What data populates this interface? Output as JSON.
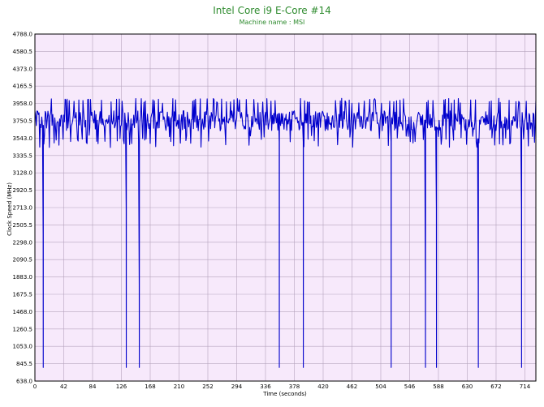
{
  "chart_data": {
    "type": "line",
    "title": "Intel Core i9 E-Core #14",
    "subtitle": "Machine name : MSI",
    "xlabel": "Time (seconds)",
    "ylabel": "Clock Speed (MHz)",
    "xlim": [
      0,
      730
    ],
    "ylim": [
      638.0,
      4788.0
    ],
    "x_ticks": [
      "0",
      "42",
      "84",
      "126",
      "168",
      "210",
      "252",
      "294",
      "336",
      "378",
      "420",
      "462",
      "504",
      "546",
      "588",
      "630",
      "672",
      "714"
    ],
    "y_ticks": [
      "4788.0",
      "4580.5",
      "4373.0",
      "4165.5",
      "3958.0",
      "3750.5",
      "3543.0",
      "3335.5",
      "3128.0",
      "2920.5",
      "2713.0",
      "2505.5",
      "2298.0",
      "2090.5",
      "1883.0",
      "1675.5",
      "1468.0",
      "1260.5",
      "1053.0",
      "845.5",
      "638.0"
    ],
    "grid": true,
    "colors": {
      "line": "#0000cc",
      "plot_bg": "#f7e9fb",
      "grid": "#b5a3bd",
      "title": "#2e8b2e"
    },
    "series": [
      {
        "baseline_mhz": 3750,
        "range_mhz": [
          3430,
          4020
        ],
        "dips": [
          {
            "t": 12,
            "min": 800,
            "upper": 2400
          },
          {
            "t": 133,
            "min": 800,
            "upper": 2700
          },
          {
            "t": 152,
            "min": 800,
            "upper": 1800
          },
          {
            "t": 356,
            "min": 800,
            "upper": 3500
          },
          {
            "t": 391,
            "min": 800,
            "upper": 3500
          },
          {
            "t": 519,
            "min": 800,
            "upper": 3500
          },
          {
            "t": 569,
            "min": 800,
            "upper": 1800
          },
          {
            "t": 585,
            "min": 800,
            "upper": 2700
          },
          {
            "t": 646,
            "min": 800,
            "upper": 1800
          },
          {
            "t": 709,
            "min": 800,
            "upper": 2700
          }
        ]
      }
    ]
  }
}
